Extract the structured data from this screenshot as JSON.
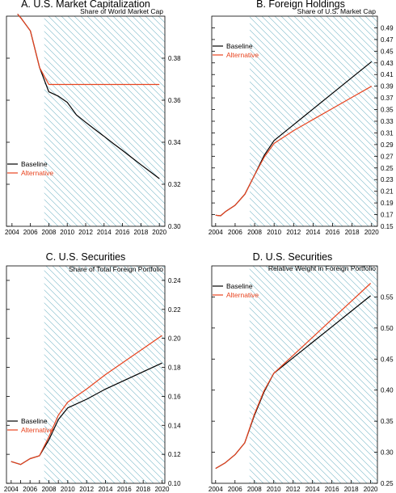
{
  "colors": {
    "baseline": "#000000",
    "alternative": "#e8431e",
    "hatch": "#79b8c8"
  },
  "chart_data": [
    {
      "type": "line",
      "title": "A.  U.S. Market Capitalization",
      "subtitle": "Share of World Market Cap",
      "x_ticks": [
        2004,
        2006,
        2008,
        2010,
        2012,
        2014,
        2016,
        2018,
        2020
      ],
      "xlim": [
        2003.4,
        2020.6
      ],
      "ylim": [
        0.3,
        0.4
      ],
      "y_ticks": [
        0.3,
        0.32,
        0.34,
        0.36,
        0.38
      ],
      "y_tick_labels": [
        "0.30",
        "0.32",
        "0.34",
        "0.36",
        "0.38"
      ],
      "shaded_x_from": 2007.5,
      "legend": {
        "placement": "left",
        "items": [
          "Baseline",
          "Alternative"
        ]
      },
      "series": [
        {
          "name": "Baseline",
          "color": "#000000",
          "x": [
            2004.6,
            2005,
            2006,
            2007,
            2008,
            2009,
            2010,
            2011,
            2012,
            2013,
            2014,
            2015,
            2016,
            2017,
            2018,
            2019,
            2020
          ],
          "values": [
            0.401,
            0.399,
            0.393,
            0.3755,
            0.364,
            0.362,
            0.359,
            0.353,
            0.3495,
            0.3461,
            0.3428,
            0.3394,
            0.3361,
            0.3327,
            0.3293,
            0.326,
            0.3227
          ]
        },
        {
          "name": "Alternative",
          "color": "#e8431e",
          "x": [
            2004.6,
            2005,
            2006,
            2007,
            2008,
            2009,
            2010,
            2012,
            2014,
            2016,
            2018,
            2020
          ],
          "values": [
            0.401,
            0.399,
            0.393,
            0.3755,
            0.3675,
            0.3675,
            0.3675,
            0.3675,
            0.3675,
            0.3675,
            0.3675,
            0.3675
          ]
        }
      ]
    },
    {
      "type": "line",
      "title": "B.  Foreign Holdings",
      "subtitle": "Share of U.S. Market Cap",
      "x_ticks": [
        2004,
        2006,
        2008,
        2010,
        2012,
        2014,
        2016,
        2018,
        2020
      ],
      "xlim": [
        2003.6,
        2020.6
      ],
      "ylim": [
        0.15,
        0.51
      ],
      "y_ticks": [
        0.15,
        0.17,
        0.19,
        0.21,
        0.23,
        0.25,
        0.27,
        0.29,
        0.31,
        0.33,
        0.35,
        0.37,
        0.39,
        0.41,
        0.43,
        0.45,
        0.47,
        0.49
      ],
      "y_tick_labels": [
        "0.15",
        "0.17",
        "0.19",
        "0.21",
        "0.23",
        "0.25",
        "0.27",
        "0.29",
        "0.31",
        "0.33",
        "0.35",
        "0.37",
        "0.39",
        "0.41",
        "0.43",
        "0.45",
        "0.47",
        "0.49"
      ],
      "shaded_x_from": 2007.5,
      "legend": {
        "placement": "top-left",
        "items": [
          "Baseline",
          "Alternative"
        ]
      },
      "series": [
        {
          "name": "Baseline",
          "color": "#000000",
          "x": [
            2004,
            2004.5,
            2005,
            2006,
            2007,
            2008,
            2009,
            2010,
            2012,
            2014,
            2016,
            2018,
            2020
          ],
          "values": [
            0.169,
            0.168,
            0.175,
            0.186,
            0.205,
            0.238,
            0.272,
            0.297,
            0.324,
            0.351,
            0.378,
            0.405,
            0.432
          ]
        },
        {
          "name": "Alternative",
          "color": "#e8431e",
          "x": [
            2004,
            2004.5,
            2005,
            2006,
            2007,
            2008,
            2009,
            2010,
            2012,
            2014,
            2016,
            2018,
            2020
          ],
          "values": [
            0.169,
            0.168,
            0.175,
            0.186,
            0.205,
            0.238,
            0.269,
            0.292,
            0.314,
            0.333,
            0.352,
            0.371,
            0.39
          ]
        }
      ]
    },
    {
      "type": "line",
      "title": "C.  U.S. Securities",
      "subtitle": "Share of Total Foreign Portfolio",
      "x_ticks": [
        2004,
        2005,
        2006,
        2007,
        2008,
        2009,
        2010,
        2012,
        2014,
        2016,
        2018,
        2020
      ],
      "x_tick_labels": [
        "2004",
        "",
        "2006",
        "",
        "2008",
        "",
        "2010",
        "2012",
        "2014",
        "2016",
        "2018",
        "2020"
      ],
      "xlim": [
        2003.5,
        2020.3
      ],
      "ylim": [
        0.1,
        0.25
      ],
      "y_ticks": [
        0.1,
        0.12,
        0.14,
        0.16,
        0.18,
        0.2,
        0.22,
        0.24
      ],
      "y_tick_labels": [
        "0.10",
        "0.12",
        "0.14",
        "0.16",
        "0.18",
        "0.20",
        "0.22",
        "0.24"
      ],
      "shaded_x_from": 2007.5,
      "legend": {
        "placement": "left",
        "items": [
          "Baseline",
          "Alternative"
        ]
      },
      "series": [
        {
          "name": "Baseline",
          "color": "#000000",
          "x": [
            2004,
            2005,
            2006,
            2007,
            2008,
            2009,
            2010,
            2012,
            2014,
            2016,
            2018,
            2020
          ],
          "values": [
            0.115,
            0.113,
            0.117,
            0.119,
            0.13,
            0.144,
            0.152,
            0.158,
            0.165,
            0.171,
            0.177,
            0.183
          ]
        },
        {
          "name": "Alternative",
          "color": "#e8431e",
          "x": [
            2004,
            2005,
            2006,
            2007,
            2008,
            2009,
            2010,
            2012,
            2014,
            2016,
            2018,
            2020
          ],
          "values": [
            0.115,
            0.113,
            0.117,
            0.119,
            0.132,
            0.147,
            0.156,
            0.165,
            0.175,
            0.184,
            0.193,
            0.202
          ]
        }
      ]
    },
    {
      "type": "line",
      "title": "D.  U.S. Securities",
      "subtitle": "Relative Weight in Foreign Portfolio",
      "x_ticks": [
        2004,
        2006,
        2008,
        2010,
        2012,
        2014,
        2016,
        2018,
        2020
      ],
      "xlim": [
        2003.6,
        2020.7
      ],
      "ylim": [
        0.25,
        0.6
      ],
      "y_ticks": [
        0.25,
        0.3,
        0.35,
        0.4,
        0.45,
        0.5,
        0.55
      ],
      "y_tick_labels": [
        "0.25",
        "0.30",
        "0.35",
        "0.40",
        "0.45",
        "0.50",
        "0.55"
      ],
      "shaded_x_from": 2007.5,
      "legend": {
        "placement": "top-left",
        "items": [
          "Baseline",
          "Alternative"
        ]
      },
      "series": [
        {
          "name": "Baseline",
          "color": "#000000",
          "x": [
            2004,
            2005,
            2006,
            2007,
            2008,
            2009,
            2010,
            2012,
            2014,
            2016,
            2018,
            2020
          ],
          "values": [
            0.274,
            0.283,
            0.296,
            0.315,
            0.359,
            0.397,
            0.427,
            0.452,
            0.477,
            0.502,
            0.527,
            0.552
          ]
        },
        {
          "name": "Alternative",
          "color": "#e8431e",
          "x": [
            2004,
            2005,
            2006,
            2007,
            2008,
            2009,
            2010,
            2012,
            2014,
            2016,
            2018,
            2020
          ],
          "values": [
            0.274,
            0.283,
            0.296,
            0.315,
            0.361,
            0.399,
            0.427,
            0.456,
            0.485,
            0.514,
            0.543,
            0.572
          ]
        }
      ]
    }
  ]
}
